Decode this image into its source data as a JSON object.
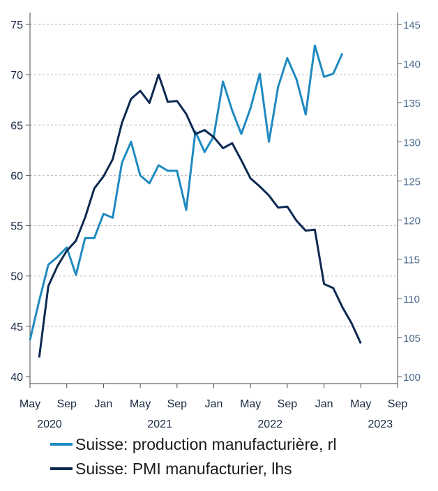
{
  "chart_data": {
    "type": "line",
    "title": "",
    "colors": {
      "pmi": "#0d2a52",
      "production": "#1f8ac0",
      "grid": "#b8b8b8"
    },
    "left_axis": {
      "min": 40,
      "max": 75,
      "ticks": [
        "40",
        "45",
        "50",
        "55",
        "60",
        "65",
        "70",
        "75"
      ]
    },
    "right_axis": {
      "min": 100,
      "max": 145,
      "ticks": [
        "100",
        "105",
        "110",
        "115",
        "120",
        "125",
        "130",
        "135",
        "140",
        "145"
      ]
    },
    "x_axis": {
      "start": "2020-05",
      "end": "2023-09",
      "ticks": [
        {
          "month": "May",
          "year": "2020"
        },
        {
          "month": "Sep",
          "year": ""
        },
        {
          "month": "Jan",
          "year": ""
        },
        {
          "month": "May",
          "year": "2021"
        },
        {
          "month": "Sep",
          "year": ""
        },
        {
          "month": "Jan",
          "year": ""
        },
        {
          "month": "May",
          "year": "2022"
        },
        {
          "month": "Sep",
          "year": ""
        },
        {
          "month": "Jan",
          "year": ""
        },
        {
          "month": "May",
          "year": "2023"
        },
        {
          "month": "Sep",
          "year": ""
        }
      ]
    },
    "series": [
      {
        "name": "Suisse: production manufacturière, rl",
        "axis": "right",
        "start": "2020-05",
        "values": [
          104.7,
          109.7,
          114.3,
          115.3,
          116.5,
          113.0,
          117.7,
          117.7,
          120.8,
          120.3,
          127.3,
          130.0,
          125.7,
          124.7,
          127.0,
          126.3,
          126.3,
          121.3,
          131.3,
          128.7,
          130.7,
          137.7,
          134.0,
          131.0,
          134.3,
          138.7,
          130.0,
          137.0,
          140.7,
          138.0,
          133.5,
          142.3,
          138.3,
          138.7,
          141.3
        ]
      },
      {
        "name": "Suisse: PMI manufacturier, lhs",
        "axis": "left",
        "start": "2020-06",
        "values": [
          41.9,
          49.0,
          51.0,
          52.5,
          53.5,
          55.8,
          58.7,
          59.9,
          61.6,
          65.2,
          67.6,
          68.4,
          67.2,
          70.0,
          67.3,
          67.4,
          66.1,
          64.1,
          64.5,
          63.8,
          62.7,
          63.2,
          61.5,
          59.7,
          58.9,
          58.0,
          56.8,
          56.9,
          55.5,
          54.5,
          54.6,
          49.2,
          48.8,
          46.9,
          45.3,
          43.3
        ]
      }
    ]
  }
}
